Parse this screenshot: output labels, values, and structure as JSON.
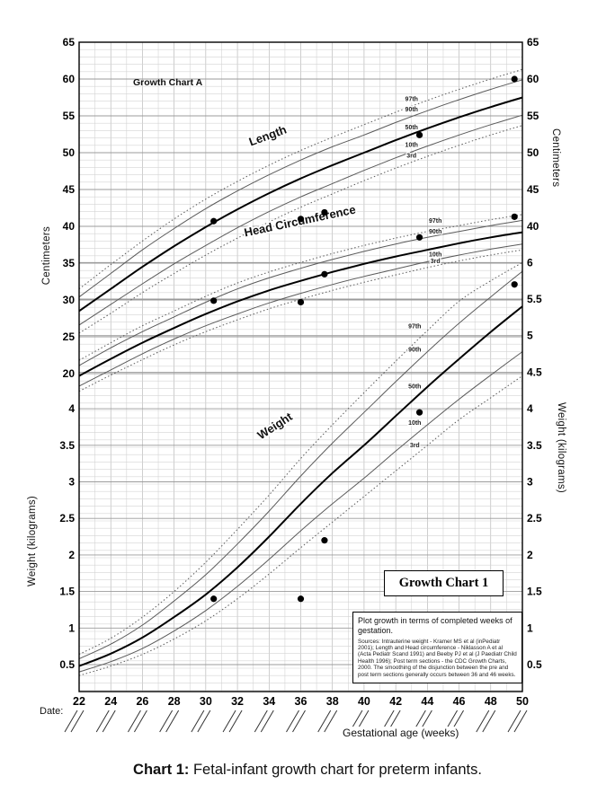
{
  "caption": {
    "label": "Chart 1:",
    "text": " Fetal-infant growth chart for preterm infants."
  },
  "chart_data": {
    "type": "line",
    "title": "Growth Chart A",
    "inset_title": "Growth Chart 1",
    "grid": true,
    "x_axis": {
      "label": "Gestational age (weeks)",
      "date_label": "Date:",
      "range": [
        22,
        50
      ],
      "ticks": [
        22,
        24,
        26,
        28,
        30,
        32,
        34,
        36,
        38,
        40,
        42,
        44,
        46,
        48,
        50
      ]
    },
    "left_axis": {
      "cm_label": "Centimeters",
      "cm_ticks": [
        65,
        60,
        55,
        50,
        45,
        40,
        35,
        30,
        25,
        20
      ],
      "kg_label": "Weight (kilograms)",
      "kg_ticks": [
        4,
        3.5,
        3,
        2.5,
        2,
        1.5,
        1,
        0.5
      ]
    },
    "right_axis": {
      "cm_label": "Centimeters",
      "cm_ticks": [
        65,
        60,
        55,
        50,
        45,
        40
      ],
      "kg_label": "Weight (kilograms)",
      "kg_ticks": [
        6,
        5.5,
        5,
        4.5,
        4,
        3.5,
        3,
        2.5,
        2,
        1.5,
        1,
        0.5
      ]
    },
    "cm_range": [
      20,
      65
    ],
    "kg_range": [
      0.5,
      6
    ],
    "weeks": [
      22,
      24,
      26,
      28,
      30,
      32,
      34,
      36,
      38,
      40,
      42,
      44,
      46,
      48,
      50
    ],
    "measures": [
      {
        "name": "Length",
        "scale": "cm",
        "curve_label": {
          "week": 34,
          "value": 51.8,
          "angle": -20
        },
        "percentiles": [
          {
            "p": "3rd",
            "style": "dotted",
            "values": [
              25.5,
              28.2,
              31.0,
              33.6,
              36.1,
              38.4,
              40.6,
              42.6,
              44.4,
              46.2,
              47.9,
              49.5,
              51.0,
              52.4,
              53.7
            ]
          },
          {
            "p": "10th",
            "style": "thin",
            "values": [
              26.6,
              29.4,
              32.2,
              34.9,
              37.4,
              39.8,
              42.0,
              44.0,
              45.8,
              47.6,
              49.3,
              50.9,
              52.4,
              53.8,
              55.1
            ]
          },
          {
            "p": "50th",
            "style": "bold",
            "values": [
              28.5,
              31.5,
              34.5,
              37.3,
              39.9,
              42.3,
              44.5,
              46.5,
              48.3,
              50.0,
              51.7,
              53.3,
              54.8,
              56.2,
              57.5
            ]
          },
          {
            "p": "90th",
            "style": "thin",
            "values": [
              30.4,
              33.6,
              36.8,
              39.7,
              42.4,
              44.8,
              47.0,
              49.0,
              50.8,
              52.4,
              54.1,
              55.7,
              57.2,
              58.6,
              59.9
            ]
          },
          {
            "p": "97th",
            "style": "dotted",
            "values": [
              31.5,
              34.8,
              38.0,
              41.0,
              43.7,
              46.1,
              48.3,
              50.3,
              52.1,
              53.8,
              55.5,
              57.1,
              58.6,
              60.0,
              61.3
            ]
          }
        ],
        "percentile_labels": [
          {
            "text": "97th",
            "week": 43,
            "value": 57.0
          },
          {
            "text": "90th",
            "week": 43,
            "value": 55.6
          },
          {
            "text": "50th",
            "week": 43,
            "value": 53.2
          },
          {
            "text": "10th",
            "week": 43,
            "value": 50.8
          },
          {
            "text": "3rd",
            "week": 43,
            "value": 49.3
          }
        ]
      },
      {
        "name": "Head Circumference",
        "scale": "cm",
        "curve_label": {
          "week": 36,
          "value": 40.2,
          "angle": -12
        },
        "percentiles": [
          {
            "p": "3rd",
            "style": "dotted",
            "values": [
              17.6,
              19.8,
              21.9,
              23.9,
              25.7,
              27.3,
              28.8,
              30.1,
              31.3,
              32.4,
              33.4,
              34.4,
              35.3,
              36.1,
              36.8
            ]
          },
          {
            "p": "10th",
            "style": "thin",
            "values": [
              18.3,
              20.5,
              22.7,
              24.7,
              26.5,
              28.1,
              29.6,
              30.9,
              32.1,
              33.2,
              34.2,
              35.2,
              36.1,
              36.9,
              37.6
            ]
          },
          {
            "p": "50th",
            "style": "bold",
            "values": [
              19.7,
              22.0,
              24.2,
              26.2,
              28.1,
              29.8,
              31.3,
              32.6,
              33.8,
              34.9,
              35.9,
              36.8,
              37.7,
              38.5,
              39.2
            ]
          },
          {
            "p": "90th",
            "style": "thin",
            "values": [
              21.1,
              23.5,
              25.7,
              27.7,
              29.7,
              31.5,
              33.0,
              34.3,
              35.5,
              36.6,
              37.6,
              38.5,
              39.3,
              40.1,
              40.8
            ]
          },
          {
            "p": "97th",
            "style": "dotted",
            "values": [
              21.8,
              24.2,
              26.5,
              28.5,
              30.5,
              32.3,
              33.8,
              35.1,
              36.3,
              37.4,
              38.4,
              39.3,
              40.1,
              40.9,
              41.6
            ]
          }
        ],
        "percentile_labels": [
          {
            "text": "97th",
            "week": 44.5,
            "value": 40.5
          },
          {
            "text": "90th",
            "week": 44.5,
            "value": 39.0
          },
          {
            "text": "10th",
            "week": 44.5,
            "value": 35.9
          },
          {
            "text": "3rd",
            "week": 44.5,
            "value": 35.0
          }
        ]
      },
      {
        "name": "Weight",
        "scale": "kg",
        "curve_label": {
          "week": 34.5,
          "value": 3.72,
          "angle": -33
        },
        "percentiles": [
          {
            "p": "3rd",
            "style": "dotted",
            "values": [
              0.35,
              0.48,
              0.64,
              0.85,
              1.1,
              1.4,
              1.74,
              2.1,
              2.45,
              2.8,
              3.15,
              3.5,
              3.85,
              4.15,
              4.45
            ]
          },
          {
            "p": "10th",
            "style": "thin",
            "values": [
              0.4,
              0.54,
              0.72,
              0.96,
              1.24,
              1.57,
              1.94,
              2.33,
              2.7,
              3.05,
              3.42,
              3.78,
              4.13,
              4.46,
              4.78
            ]
          },
          {
            "p": "50th",
            "style": "bold",
            "values": [
              0.48,
              0.65,
              0.87,
              1.15,
              1.46,
              1.83,
              2.25,
              2.7,
              3.12,
              3.5,
              3.9,
              4.3,
              4.68,
              5.05,
              5.4
            ]
          },
          {
            "p": "90th",
            "style": "thin",
            "values": [
              0.58,
              0.78,
              1.04,
              1.37,
              1.73,
              2.15,
              2.6,
              3.08,
              3.53,
              3.95,
              4.37,
              4.78,
              5.17,
              5.53,
              5.88
            ]
          },
          {
            "p": "97th",
            "style": "dotted",
            "values": [
              0.64,
              0.86,
              1.15,
              1.5,
              1.9,
              2.35,
              2.82,
              3.32,
              3.78,
              4.22,
              4.65,
              5.07,
              5.47,
              5.75,
              6.0
            ]
          }
        ],
        "percentile_labels": [
          {
            "text": "97th",
            "week": 43.2,
            "value": 5.1
          },
          {
            "text": "90th",
            "week": 43.2,
            "value": 4.78
          },
          {
            "text": "50th",
            "week": 43.2,
            "value": 4.28
          },
          {
            "text": "10th",
            "week": 43.2,
            "value": 3.78
          },
          {
            "text": "3rd",
            "week": 43.2,
            "value": 3.47
          }
        ]
      }
    ],
    "patient": {
      "weeks": [
        30.5,
        36,
        37.5,
        43.5,
        49.5
      ],
      "length_cm": [
        40.7,
        41.0,
        41.9,
        52.4,
        60.0
      ],
      "head_cm": [
        29.9,
        29.7,
        33.5,
        38.5,
        41.3
      ],
      "weight_kg": [
        1.4,
        1.4,
        2.2,
        3.95,
        5.7
      ]
    },
    "note": {
      "heading": "Plot growth in terms of completed weeks of gestation.",
      "sources": "Sources: Intrauterine weight - Kramer MS et al (inPediatr 2001); Length and Head circumference - Niklasson A et al (Acta Pediatr Scand 1991) and Beeby PJ et al (J Paediatr Child Health 1996); Post term sections - the CDC Growth Charts, 2000. The smoothing of the disjunction between the pre and post term sections generally occurs between 36 and 46 weeks."
    }
  }
}
